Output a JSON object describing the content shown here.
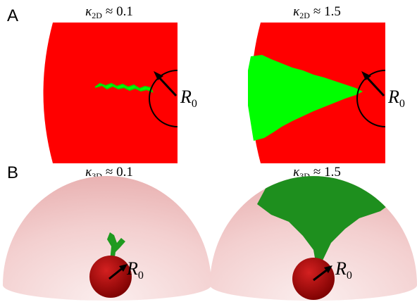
{
  "panel_a": {
    "label": "A",
    "subpanels": [
      {
        "title": {
          "symbol": "κ",
          "subscript": "2D",
          "value": "≈ 0.1"
        },
        "radius_label": {
          "symbol": "R",
          "subscript": "0"
        }
      },
      {
        "title": {
          "symbol": "κ",
          "subscript": "2D",
          "value": "≈ 1.5"
        },
        "radius_label": {
          "symbol": "R",
          "subscript": "0"
        }
      }
    ]
  },
  "panel_b": {
    "label": "B",
    "subpanels": [
      {
        "title": {
          "symbol": "κ",
          "subscript": "3D",
          "value": "≈ 0.1"
        },
        "radius_label": {
          "symbol": "R",
          "subscript": "0"
        }
      },
      {
        "title": {
          "symbol": "κ",
          "subscript": "3D",
          "value": "≈ 1.5"
        },
        "radius_label": {
          "symbol": "R",
          "subscript": "0"
        }
      }
    ]
  }
}
